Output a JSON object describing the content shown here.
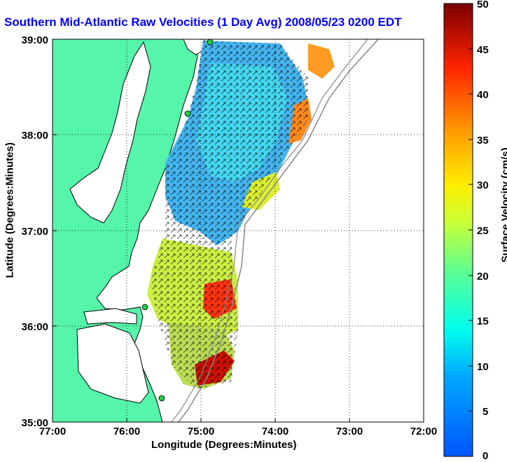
{
  "title": "Southern Mid-Atlantic Raw Velocities (1 Day Avg) 2008/05/23 0200 EDT",
  "xlabel": "Longitude (Degrees:Minutes)",
  "ylabel": "Latitude (Degrees:Minutes)",
  "colorbar_label": "Surface Velocity (cm/s)",
  "x_ticks": [
    "77:00",
    "76:00",
    "75:00",
    "74:00",
    "73:00",
    "72:00"
  ],
  "y_ticks": [
    "39:00",
    "38:00",
    "37:00",
    "36:00",
    "35:00"
  ],
  "colorbar_ticks": [
    "50",
    "45",
    "40",
    "35",
    "30",
    "25",
    "20",
    "15",
    "10",
    "5",
    "0"
  ],
  "colors": {
    "land": "#55f5aa",
    "water": "#ffffff",
    "title": "#0000ff",
    "station": "#22cc44",
    "high_speed": "#cc1100",
    "low_speed": "#0066ff"
  },
  "chart_data": {
    "type": "heatmap",
    "title": "Southern Mid-Atlantic Raw Velocities (1 Day Avg) 2008/05/23 0200 EDT",
    "xlabel": "Longitude (Degrees:Minutes)",
    "ylabel": "Latitude (Degrees:Minutes)",
    "xlim": [
      "77:00",
      "72:00"
    ],
    "ylim": [
      "35:00",
      "39:00"
    ],
    "colorbar_range": [
      0,
      50
    ],
    "colorbar_units": "cm/s",
    "grid": true
  }
}
